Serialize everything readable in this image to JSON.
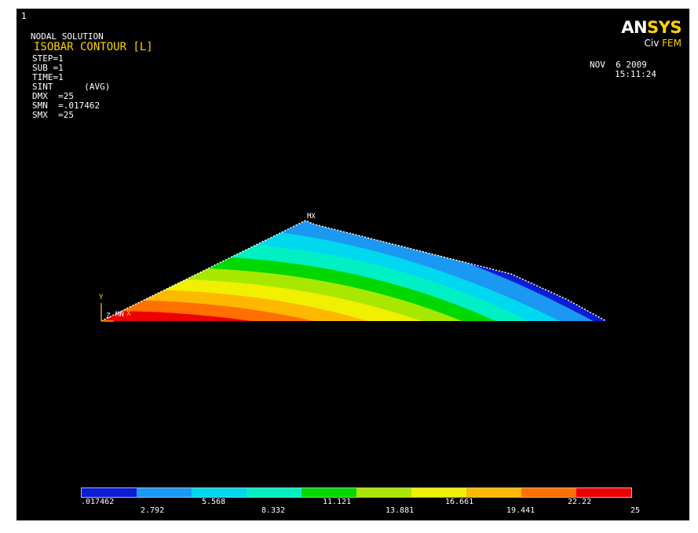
{
  "window_number": "1",
  "header": {
    "title_line": "NODAL SOLUTION",
    "subtitle_line": "ISOBAR CONTOUR [L]",
    "info_lines": [
      "STEP=1",
      "SUB =1",
      "TIME=1",
      "SINT      (AVG)",
      "DMX  =25",
      "SMN  =.017462",
      "SMX  =25"
    ]
  },
  "logo": {
    "main_white": "AN",
    "main_accent": "SYS",
    "sub_white": "Civ ",
    "sub_accent": "FEM"
  },
  "datetime": {
    "date": "NOV  6 2009",
    "time": "15:11:24"
  },
  "plot_labels": {
    "max_marker": "MX",
    "min_marker": "MN",
    "axis_y": "Y",
    "axis_x": "X",
    "axis_z": "Z"
  },
  "legend": {
    "colors": [
      "#0a1cd8",
      "#1a98f2",
      "#00d8f0",
      "#00f0c4",
      "#00d800",
      "#a8e800",
      "#f0f000",
      "#ffb800",
      "#ff7000",
      "#ee0000"
    ],
    "labels_top": [
      ".017462",
      "5.568",
      "11.121",
      "16.661",
      "22.22"
    ],
    "labels_bottom": [
      "2.792",
      "8.332",
      "13.881",
      "19.441",
      "25"
    ]
  }
}
